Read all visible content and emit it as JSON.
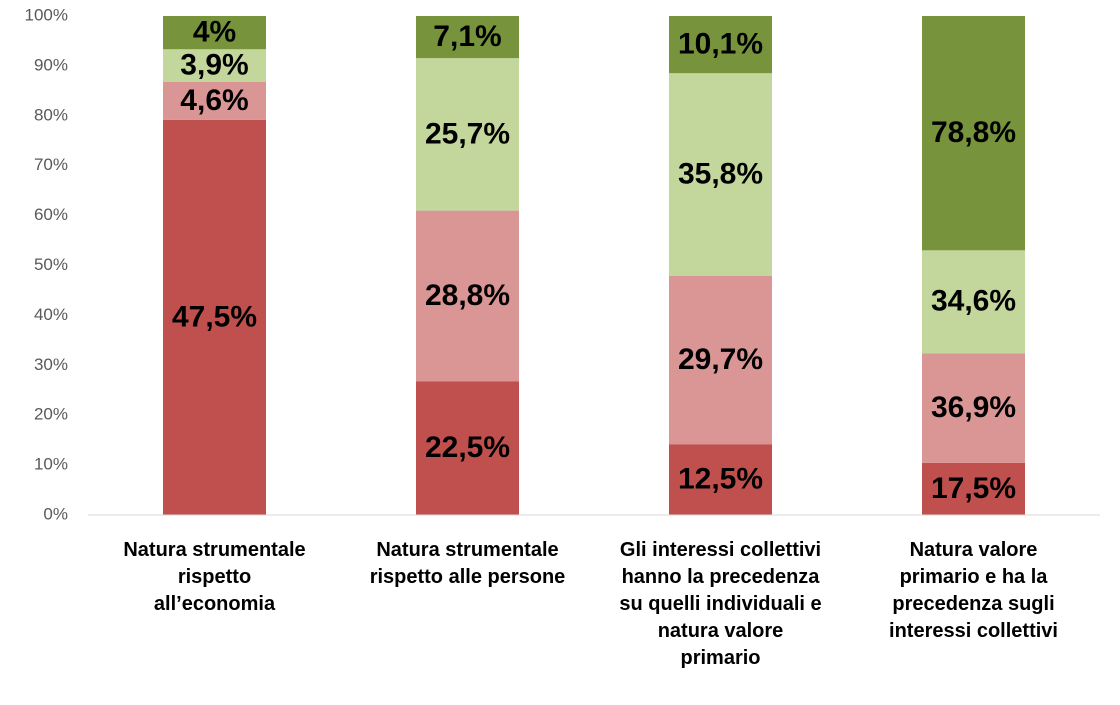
{
  "chart_data": {
    "type": "bar",
    "stacking": "percent",
    "categories": [
      "Natura strumentale\nrispetto\nall’economia",
      "Natura strumentale\nrispetto alle persone",
      "Gli interessi collettivi\nhanno la precedenza\nsu quelli individuali e\nnatura valore\nprimario",
      "Natura valore\nprimario e ha la\nprecedenza sugli\ninteressi collettivi"
    ],
    "series": [
      {
        "color": "#c0504d",
        "values": [
          47.5,
          22.5,
          12.5,
          17.5
        ],
        "value_labels": [
          "47,5%",
          "22,5%",
          "12,5%",
          "17,5%"
        ]
      },
      {
        "color": "#d99694",
        "values": [
          4.6,
          28.8,
          29.7,
          36.9
        ],
        "value_labels": [
          "4,6%",
          "28,8%",
          "29,7%",
          "36,9%"
        ]
      },
      {
        "color": "#c3d69b",
        "values": [
          3.9,
          25.7,
          35.8,
          34.6
        ],
        "value_labels": [
          "3,9%",
          "25,7%",
          "35,8%",
          "34,6%"
        ]
      },
      {
        "color": "#77933c",
        "values": [
          4,
          7.1,
          10.1,
          78.8
        ],
        "value_labels": [
          "4%",
          "7,1%",
          "10,1%",
          "78,8%"
        ]
      }
    ],
    "ylim": [
      0,
      100
    ],
    "yticks": [
      {
        "value": 0,
        "label": "0%"
      },
      {
        "value": 10,
        "label": "10%"
      },
      {
        "value": 20,
        "label": "20%"
      },
      {
        "value": 30,
        "label": "30%"
      },
      {
        "value": 40,
        "label": "40%"
      },
      {
        "value": 50,
        "label": "50%"
      },
      {
        "value": 60,
        "label": "60%"
      },
      {
        "value": 70,
        "label": "70%"
      },
      {
        "value": 80,
        "label": "80%"
      },
      {
        "value": 90,
        "label": "90%"
      },
      {
        "value": 100,
        "label": "100%"
      }
    ],
    "grid": false
  }
}
